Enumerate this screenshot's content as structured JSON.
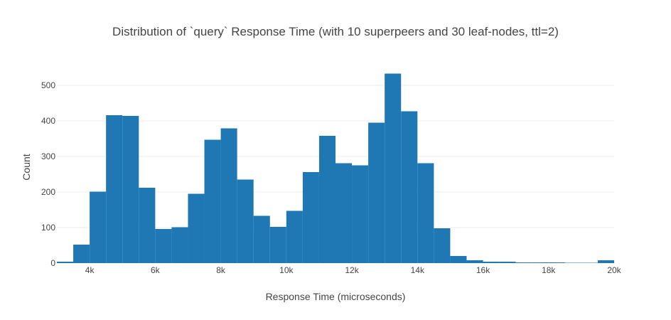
{
  "chart_data": {
    "type": "bar",
    "subtype": "histogram",
    "title": "Distribution of `query` Response Time (with 10 superpeers and 30 leaf-nodes, ttl=2)",
    "xlabel": "Response Time (microseconds)",
    "ylabel": "Count",
    "xlim": [
      3000,
      20000
    ],
    "ylim": [
      0,
      560
    ],
    "grid": true,
    "bar_color": "#1f77b4",
    "bin_width": 500,
    "bins": [
      {
        "start": 3000,
        "value": 4
      },
      {
        "start": 3500,
        "value": 52
      },
      {
        "start": 4000,
        "value": 201
      },
      {
        "start": 4500,
        "value": 416
      },
      {
        "start": 5000,
        "value": 414
      },
      {
        "start": 5500,
        "value": 212
      },
      {
        "start": 6000,
        "value": 96
      },
      {
        "start": 6500,
        "value": 101
      },
      {
        "start": 7000,
        "value": 195
      },
      {
        "start": 7500,
        "value": 347
      },
      {
        "start": 8000,
        "value": 379
      },
      {
        "start": 8500,
        "value": 235
      },
      {
        "start": 9000,
        "value": 133
      },
      {
        "start": 9500,
        "value": 102
      },
      {
        "start": 10000,
        "value": 147
      },
      {
        "start": 10500,
        "value": 256
      },
      {
        "start": 11000,
        "value": 358
      },
      {
        "start": 11500,
        "value": 281
      },
      {
        "start": 12000,
        "value": 275
      },
      {
        "start": 12500,
        "value": 395
      },
      {
        "start": 13000,
        "value": 533
      },
      {
        "start": 13500,
        "value": 427
      },
      {
        "start": 14000,
        "value": 281
      },
      {
        "start": 14500,
        "value": 98
      },
      {
        "start": 15000,
        "value": 20
      },
      {
        "start": 15500,
        "value": 8
      },
      {
        "start": 16000,
        "value": 4
      },
      {
        "start": 16500,
        "value": 4
      },
      {
        "start": 17000,
        "value": 2
      },
      {
        "start": 17500,
        "value": 2
      },
      {
        "start": 18000,
        "value": 2
      },
      {
        "start": 18500,
        "value": 1
      },
      {
        "start": 19000,
        "value": 1
      },
      {
        "start": 19500,
        "value": 8
      }
    ],
    "x_ticks": [
      {
        "value": 4000,
        "label": "4k"
      },
      {
        "value": 6000,
        "label": "6k"
      },
      {
        "value": 8000,
        "label": "8k"
      },
      {
        "value": 10000,
        "label": "10k"
      },
      {
        "value": 12000,
        "label": "12k"
      },
      {
        "value": 14000,
        "label": "14k"
      },
      {
        "value": 16000,
        "label": "16k"
      },
      {
        "value": 18000,
        "label": "18k"
      },
      {
        "value": 20000,
        "label": "20k"
      }
    ],
    "y_ticks": [
      {
        "value": 0,
        "label": "0"
      },
      {
        "value": 100,
        "label": "100"
      },
      {
        "value": 200,
        "label": "200"
      },
      {
        "value": 300,
        "label": "300"
      },
      {
        "value": 400,
        "label": "400"
      },
      {
        "value": 500,
        "label": "500"
      }
    ]
  }
}
